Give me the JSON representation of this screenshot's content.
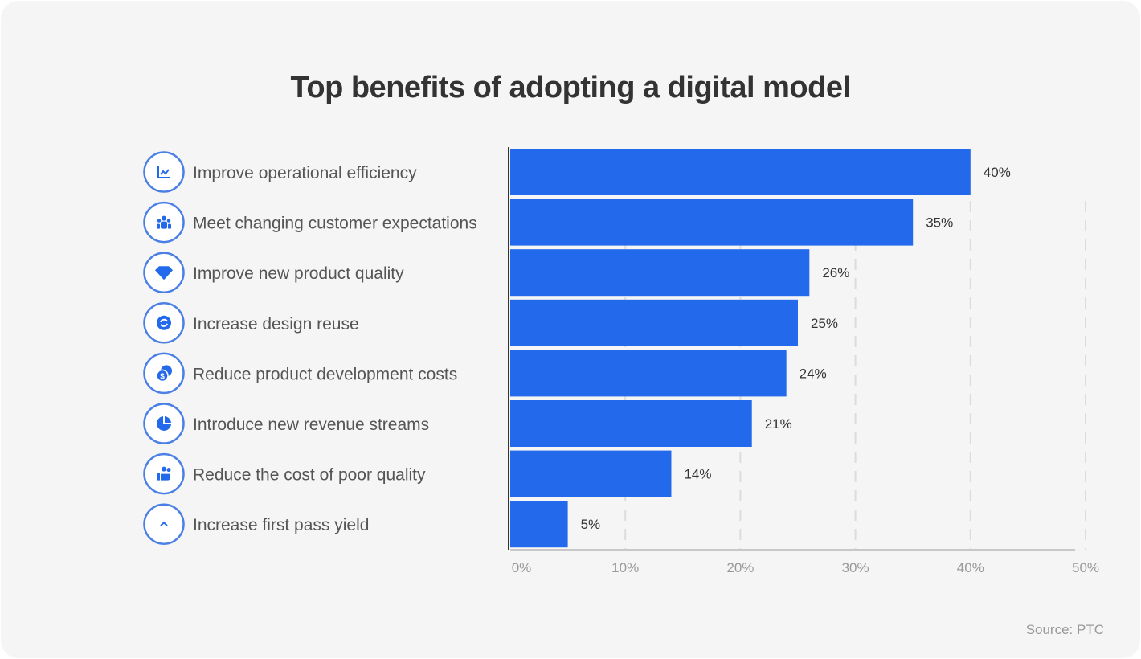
{
  "chart_data": {
    "type": "bar",
    "orientation": "horizontal",
    "title": "Top benefits of adopting a digital model",
    "categories": [
      "Improve operational efficiency",
      "Meet changing customer expectations",
      "Improve new product quality",
      "Increase design reuse",
      "Reduce product development costs",
      "Introduce new revenue streams",
      "Reduce the cost of poor quality",
      "Increase first pass yield"
    ],
    "icons": [
      "line-chart-icon",
      "people-icon",
      "diamond-icon",
      "recycle-icon",
      "coins-icon",
      "pie-chart-icon",
      "hand-people-icon",
      "chevron-up-icon"
    ],
    "values": [
      40,
      35,
      26,
      25,
      24,
      21,
      14,
      5
    ],
    "data_labels": [
      "40%",
      "35%",
      "26%",
      "25%",
      "24%",
      "21%",
      "14%",
      "5%"
    ],
    "xlim": [
      0,
      50
    ],
    "x_ticks": [
      0,
      10,
      20,
      30,
      40,
      50
    ],
    "x_tick_labels": [
      "0%",
      "10%",
      "20%",
      "30%",
      "40%",
      "50%"
    ],
    "grid": "vertical dashed",
    "bar_color": "#2369eb",
    "source": "Source: PTC"
  }
}
